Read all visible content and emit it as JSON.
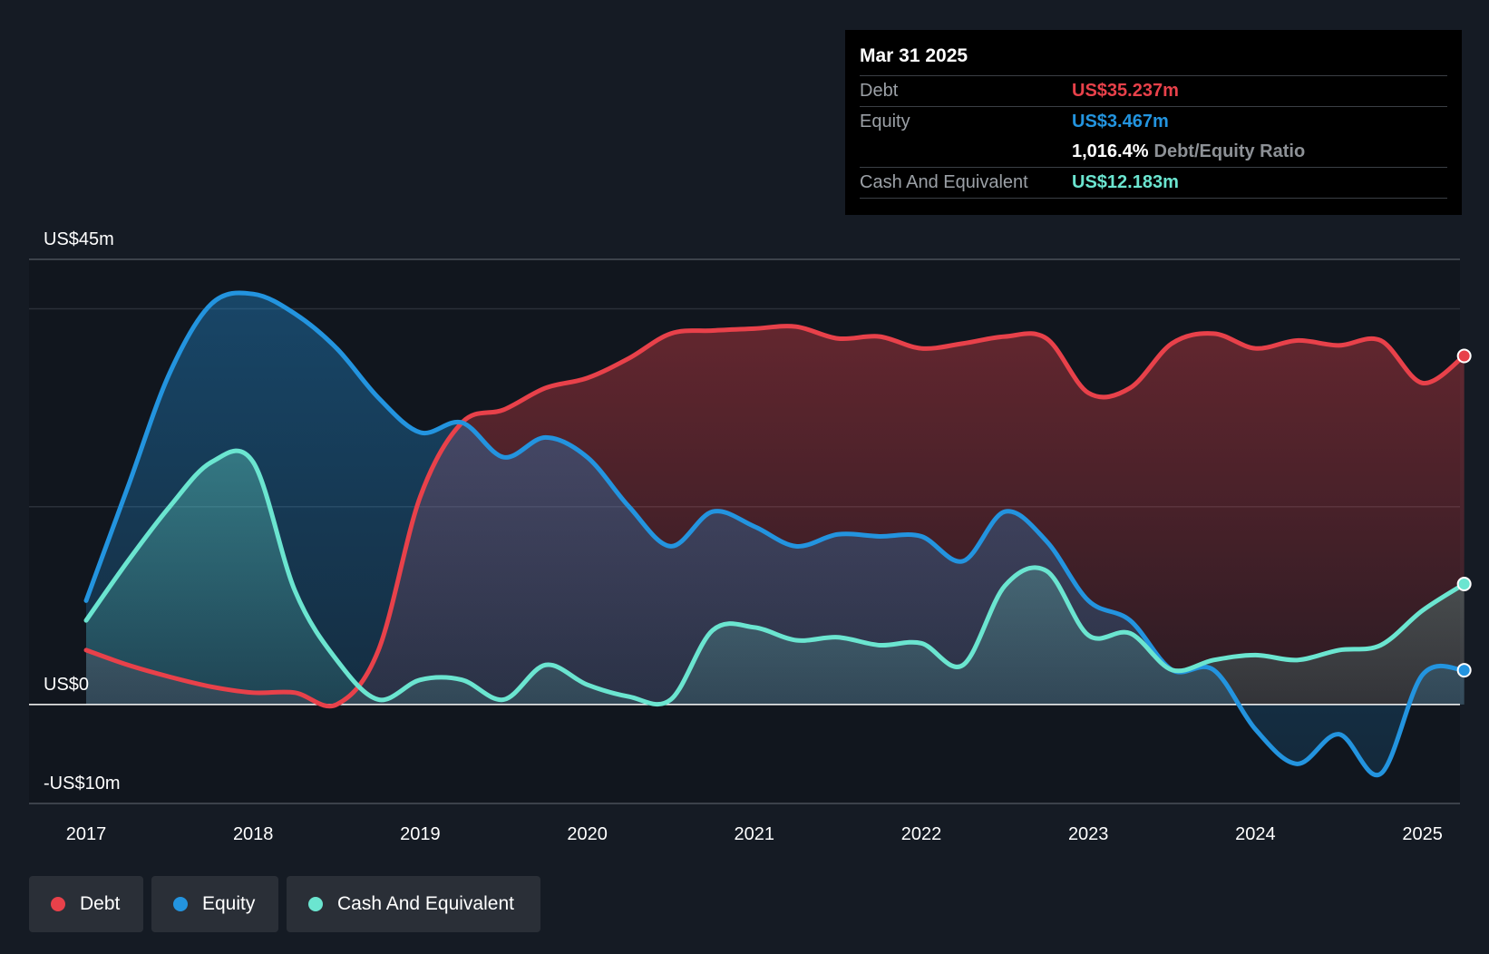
{
  "tooltip": {
    "date": "Mar 31 2025",
    "debt_label": "Debt",
    "debt_value": "US$35.237m",
    "equity_label": "Equity",
    "equity_value": "US$3.467m",
    "ratio_value": "1,016.4%",
    "ratio_label": "Debt/Equity Ratio",
    "cash_label": "Cash And Equivalent",
    "cash_value": "US$12.183m"
  },
  "legend": {
    "debt": "Debt",
    "equity": "Equity",
    "cash": "Cash And Equivalent"
  },
  "colors": {
    "debt": "#e8414a",
    "equity": "#2394df",
    "cash": "#6be5d0",
    "background": "#151b24"
  },
  "chart_data": {
    "type": "area",
    "title": "",
    "ylim": [
      -10,
      45
    ],
    "y_tick_labels": [
      {
        "value": 45,
        "label": "US$45m"
      },
      {
        "value": 0,
        "label": "US$0"
      },
      {
        "value": -10,
        "label": "-US$10m"
      }
    ],
    "x_tick_labels": [
      "2017",
      "2018",
      "2019",
      "2020",
      "2021",
      "2022",
      "2023",
      "2024",
      "2025"
    ],
    "x_range": [
      2016.66,
      2025.25
    ],
    "grid": true,
    "legend_position": "bottom-left",
    "series": [
      {
        "name": "Debt",
        "points": [
          [
            2017.0,
            5.5
          ],
          [
            2017.25,
            4.0
          ],
          [
            2017.5,
            2.8
          ],
          [
            2017.75,
            1.8
          ],
          [
            2018.0,
            1.2
          ],
          [
            2018.25,
            1.2
          ],
          [
            2018.5,
            0.0
          ],
          [
            2018.75,
            5.5
          ],
          [
            2019.0,
            21.0
          ],
          [
            2019.25,
            28.5
          ],
          [
            2019.5,
            29.8
          ],
          [
            2019.75,
            32.0
          ],
          [
            2020.0,
            33.0
          ],
          [
            2020.25,
            35.0
          ],
          [
            2020.5,
            37.5
          ],
          [
            2020.75,
            37.8
          ],
          [
            2021.0,
            38.0
          ],
          [
            2021.25,
            38.2
          ],
          [
            2021.5,
            37.0
          ],
          [
            2021.75,
            37.2
          ],
          [
            2022.0,
            36.0
          ],
          [
            2022.25,
            36.5
          ],
          [
            2022.5,
            37.2
          ],
          [
            2022.75,
            37.0
          ],
          [
            2023.0,
            31.5
          ],
          [
            2023.25,
            32.0
          ],
          [
            2023.5,
            36.5
          ],
          [
            2023.75,
            37.5
          ],
          [
            2024.0,
            36.0
          ],
          [
            2024.25,
            36.8
          ],
          [
            2024.5,
            36.3
          ],
          [
            2024.75,
            36.8
          ],
          [
            2025.0,
            32.5
          ],
          [
            2025.25,
            35.237
          ]
        ]
      },
      {
        "name": "Equity",
        "points": [
          [
            2017.0,
            10.5
          ],
          [
            2017.25,
            22.0
          ],
          [
            2017.5,
            33.5
          ],
          [
            2017.75,
            40.5
          ],
          [
            2018.0,
            41.5
          ],
          [
            2018.25,
            39.5
          ],
          [
            2018.5,
            36.0
          ],
          [
            2018.75,
            31.0
          ],
          [
            2019.0,
            27.5
          ],
          [
            2019.25,
            28.5
          ],
          [
            2019.5,
            25.0
          ],
          [
            2019.75,
            27.0
          ],
          [
            2020.0,
            25.0
          ],
          [
            2020.25,
            20.0
          ],
          [
            2020.5,
            16.0
          ],
          [
            2020.75,
            19.5
          ],
          [
            2021.0,
            18.0
          ],
          [
            2021.25,
            16.0
          ],
          [
            2021.5,
            17.2
          ],
          [
            2021.75,
            17.0
          ],
          [
            2022.0,
            17.0
          ],
          [
            2022.25,
            14.5
          ],
          [
            2022.5,
            19.5
          ],
          [
            2022.75,
            16.5
          ],
          [
            2023.0,
            10.5
          ],
          [
            2023.25,
            8.5
          ],
          [
            2023.5,
            3.5
          ],
          [
            2023.75,
            3.5
          ],
          [
            2024.0,
            -2.5
          ],
          [
            2024.25,
            -6.0
          ],
          [
            2024.5,
            -3.0
          ],
          [
            2024.75,
            -7.0
          ],
          [
            2025.0,
            3.0
          ],
          [
            2025.25,
            3.467
          ]
        ]
      },
      {
        "name": "Cash And Equivalent",
        "points": [
          [
            2017.0,
            8.5
          ],
          [
            2017.25,
            14.5
          ],
          [
            2017.5,
            20.0
          ],
          [
            2017.75,
            24.5
          ],
          [
            2018.0,
            24.5
          ],
          [
            2018.25,
            11.5
          ],
          [
            2018.5,
            4.5
          ],
          [
            2018.75,
            0.5
          ],
          [
            2019.0,
            2.5
          ],
          [
            2019.25,
            2.5
          ],
          [
            2019.5,
            0.5
          ],
          [
            2019.75,
            4.0
          ],
          [
            2020.0,
            2.0
          ],
          [
            2020.25,
            0.8
          ],
          [
            2020.5,
            0.5
          ],
          [
            2020.75,
            7.5
          ],
          [
            2021.0,
            7.8
          ],
          [
            2021.25,
            6.5
          ],
          [
            2021.5,
            6.8
          ],
          [
            2021.75,
            6.0
          ],
          [
            2022.0,
            6.2
          ],
          [
            2022.25,
            4.0
          ],
          [
            2022.5,
            12.0
          ],
          [
            2022.75,
            13.5
          ],
          [
            2023.0,
            7.0
          ],
          [
            2023.25,
            7.2
          ],
          [
            2023.5,
            3.5
          ],
          [
            2023.75,
            4.5
          ],
          [
            2024.0,
            5.0
          ],
          [
            2024.25,
            4.5
          ],
          [
            2024.5,
            5.5
          ],
          [
            2024.75,
            6.0
          ],
          [
            2025.0,
            9.5
          ],
          [
            2025.25,
            12.183
          ]
        ]
      }
    ]
  }
}
